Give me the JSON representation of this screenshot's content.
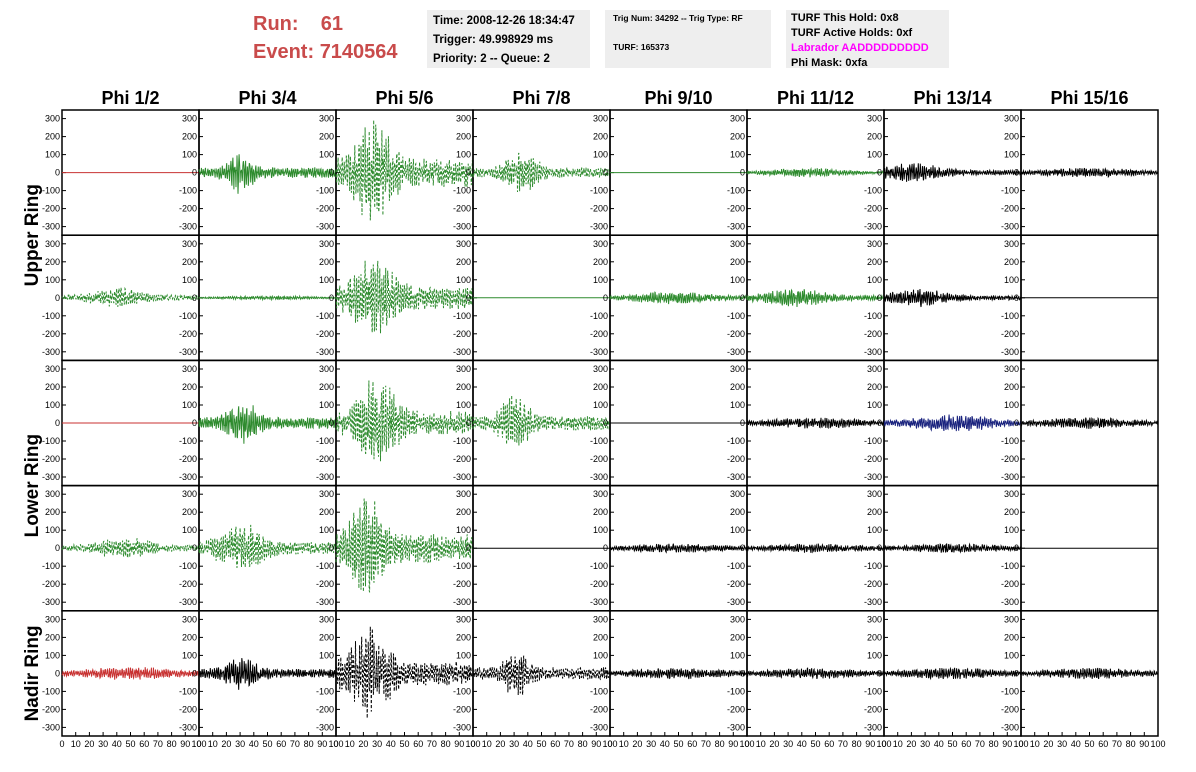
{
  "header": {
    "run_label": "Run:",
    "run_value": "61",
    "event_label": "Event:",
    "event_value": "7140564"
  },
  "time_box": {
    "time": "Time: 2008-12-26 18:34:47",
    "trigger": "Trigger: 49.998929 ms",
    "priority": "Priority: 2 -- Queue: 2"
  },
  "trig_box": {
    "trig": "Trig Num: 34292 -- Trig Type: RF",
    "turf": "TURF: 165373"
  },
  "turf_box": {
    "this_hold": "TURF This Hold: 0x8",
    "active_holds": "TURF Active Holds: 0xf",
    "labrador": "Labrador AADDDDDDDDD",
    "phi_mask": "Phi Mask: 0xfa",
    "labrador_color": "#ff00ff"
  },
  "colors": {
    "title_red": "#c94b4b",
    "info_bg": "#eeeeee",
    "black": "#000000",
    "green": "#2e8b2e",
    "red": "#c83232",
    "navy": "#1a237e"
  },
  "chart_data": {
    "type": "line",
    "description_layout": "8 phi columns x 5 ring rows of voltage waveforms",
    "columns": [
      "Phi 1/2",
      "Phi 3/4",
      "Phi 5/6",
      "Phi 7/8",
      "Phi 9/10",
      "Phi 11/12",
      "Phi 13/14",
      "Phi 15/16"
    ],
    "rows": [
      "Upper Ring",
      "Upper Ring",
      "Lower Ring",
      "Lower Ring",
      "Nadir Ring"
    ],
    "ring_labels": [
      "Upper Ring",
      "Lower Ring",
      "Nadir Ring"
    ],
    "ylim": [
      -320,
      320
    ],
    "xlim": [
      0,
      100
    ],
    "yticks": [
      300,
      200,
      100,
      0,
      -100,
      -200,
      -300
    ],
    "ytick_labels": [
      "300",
      "200",
      "100",
      "0",
      "-100",
      "-200",
      "-300"
    ],
    "xticks": [
      0,
      10,
      20,
      30,
      40,
      50,
      60,
      70,
      80,
      90,
      100
    ],
    "xtick_label_strings": [
      "0",
      "10",
      "20",
      "30",
      "40",
      "50",
      "60",
      "70",
      "80",
      "90",
      "100"
    ],
    "panels": [
      [
        {
          "color": "#c83232",
          "dashed": false,
          "amp": 0,
          "center": 50,
          "width": 30
        },
        {
          "color": "#2e8b2e",
          "dashed": false,
          "amp": 110,
          "center": 30,
          "width": 10
        },
        {
          "color": "#2e8b2e",
          "dashed": true,
          "amp": 300,
          "center": 28,
          "width": 14
        },
        {
          "color": "#2e8b2e",
          "dashed": true,
          "amp": 110,
          "center": 35,
          "width": 14
        },
        {
          "color": "#2e8b2e",
          "dashed": false,
          "amp": 0,
          "center": 50,
          "width": 30
        },
        {
          "color": "#2e8b2e",
          "dashed": false,
          "amp": 25,
          "center": 45,
          "width": 30
        },
        {
          "color": "#000000",
          "dashed": false,
          "amp": 50,
          "center": 20,
          "width": 25
        },
        {
          "color": "#000000",
          "dashed": false,
          "amp": 25,
          "center": 50,
          "width": 40
        }
      ],
      [
        {
          "color": "#2e8b2e",
          "dashed": true,
          "amp": 55,
          "center": 40,
          "width": 20
        },
        {
          "color": "#2e8b2e",
          "dashed": false,
          "amp": 10,
          "center": 50,
          "width": 40
        },
        {
          "color": "#2e8b2e",
          "dashed": true,
          "amp": 240,
          "center": 28,
          "width": 15
        },
        {
          "color": "#2e8b2e",
          "dashed": false,
          "amp": 0,
          "center": 50,
          "width": 30
        },
        {
          "color": "#2e8b2e",
          "dashed": false,
          "amp": 35,
          "center": 45,
          "width": 30
        },
        {
          "color": "#2e8b2e",
          "dashed": false,
          "amp": 50,
          "center": 35,
          "width": 25
        },
        {
          "color": "#000000",
          "dashed": false,
          "amp": 50,
          "center": 25,
          "width": 22
        },
        {
          "color": "#000000",
          "dashed": false,
          "amp": 0,
          "center": 50,
          "width": 30
        }
      ],
      [
        {
          "color": "#c83232",
          "dashed": false,
          "amp": 0,
          "center": 50,
          "width": 30
        },
        {
          "color": "#2e8b2e",
          "dashed": false,
          "amp": 120,
          "center": 32,
          "width": 12
        },
        {
          "color": "#2e8b2e",
          "dashed": true,
          "amp": 250,
          "center": 30,
          "width": 15
        },
        {
          "color": "#2e8b2e",
          "dashed": true,
          "amp": 150,
          "center": 30,
          "width": 12
        },
        {
          "color": "#000000",
          "dashed": false,
          "amp": 0,
          "center": 50,
          "width": 30
        },
        {
          "color": "#000000",
          "dashed": false,
          "amp": 30,
          "center": 50,
          "width": 40
        },
        {
          "color": "#1a237e",
          "dashed": false,
          "amp": 45,
          "center": 50,
          "width": 35
        },
        {
          "color": "#000000",
          "dashed": false,
          "amp": 30,
          "center": 50,
          "width": 40
        }
      ],
      [
        {
          "color": "#2e8b2e",
          "dashed": true,
          "amp": 60,
          "center": 45,
          "width": 22
        },
        {
          "color": "#2e8b2e",
          "dashed": true,
          "amp": 140,
          "center": 30,
          "width": 16
        },
        {
          "color": "#2e8b2e",
          "dashed": true,
          "amp": 300,
          "center": 22,
          "width": 12
        },
        {
          "color": "#000000",
          "dashed": false,
          "amp": 0,
          "center": 50,
          "width": 30
        },
        {
          "color": "#000000",
          "dashed": false,
          "amp": 25,
          "center": 50,
          "width": 40
        },
        {
          "color": "#000000",
          "dashed": false,
          "amp": 25,
          "center": 50,
          "width": 40
        },
        {
          "color": "#000000",
          "dashed": false,
          "amp": 25,
          "center": 50,
          "width": 40
        },
        {
          "color": "#000000",
          "dashed": false,
          "amp": 0,
          "center": 50,
          "width": 30
        }
      ],
      [
        {
          "color": "#c83232",
          "dashed": false,
          "amp": 35,
          "center": 50,
          "width": 40
        },
        {
          "color": "#000000",
          "dashed": false,
          "amp": 90,
          "center": 30,
          "width": 14
        },
        {
          "color": "#000000",
          "dashed": true,
          "amp": 250,
          "center": 25,
          "width": 16
        },
        {
          "color": "#000000",
          "dashed": true,
          "amp": 130,
          "center": 32,
          "width": 10
        },
        {
          "color": "#000000",
          "dashed": false,
          "amp": 30,
          "center": 50,
          "width": 40
        },
        {
          "color": "#000000",
          "dashed": false,
          "amp": 30,
          "center": 50,
          "width": 40
        },
        {
          "color": "#000000",
          "dashed": false,
          "amp": 30,
          "center": 50,
          "width": 40
        },
        {
          "color": "#000000",
          "dashed": false,
          "amp": 30,
          "center": 50,
          "width": 40
        }
      ]
    ]
  }
}
